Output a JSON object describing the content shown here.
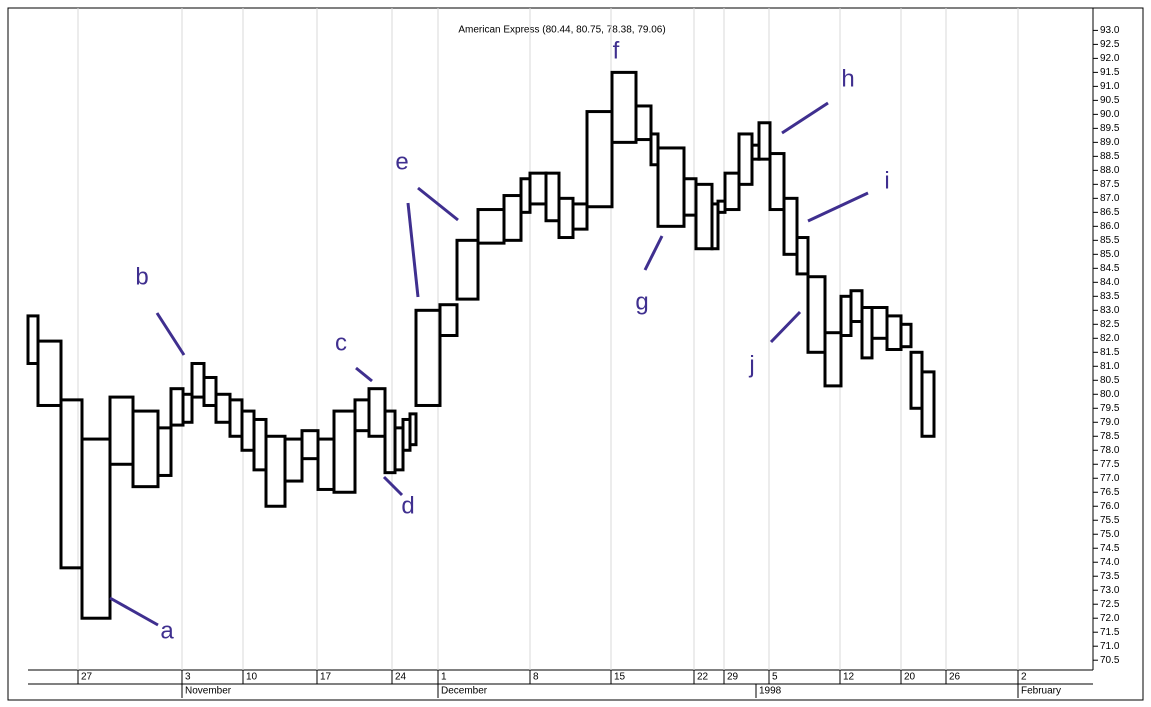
{
  "chart_data": {
    "type": "equivolume",
    "title": "American Express (80.44, 80.75, 78.38, 79.06)",
    "high": [
      82.8,
      81.9,
      79.8,
      78.4,
      79.9,
      79.4,
      78.8,
      80.2,
      80.0,
      81.1,
      80.6,
      80.0,
      79.8,
      79.4,
      79.1,
      78.5,
      78.4,
      78.7,
      78.4,
      79.4,
      79.8,
      80.2,
      79.4,
      78.8,
      79.1,
      79.3,
      83.0,
      83.2,
      85.5,
      86.6,
      87.1,
      87.7,
      87.9,
      87.9,
      87.0,
      86.8,
      90.1,
      91.5,
      90.3,
      89.3,
      88.8,
      87.7,
      87.5,
      86.8,
      86.9,
      87.9,
      89.3,
      88.9,
      89.7,
      88.6,
      87.0,
      85.6,
      84.2,
      82.2,
      83.5,
      83.7,
      83.1,
      83.1,
      82.8,
      82.5,
      81.5,
      80.8
    ],
    "low": [
      81.1,
      79.6,
      73.8,
      72.0,
      77.5,
      76.7,
      77.1,
      78.9,
      79.0,
      79.9,
      79.6,
      79.0,
      78.5,
      78.0,
      77.3,
      76.0,
      76.9,
      77.7,
      76.6,
      76.5,
      78.7,
      78.5,
      77.2,
      77.3,
      78.0,
      78.2,
      79.6,
      82.1,
      83.4,
      85.4,
      85.5,
      86.5,
      86.8,
      86.2,
      85.6,
      85.9,
      86.7,
      89.0,
      89.1,
      88.2,
      86.0,
      86.4,
      85.2,
      85.2,
      86.5,
      86.6,
      87.5,
      88.4,
      88.4,
      86.6,
      85.0,
      84.3,
      81.5,
      80.3,
      82.1,
      82.6,
      81.3,
      82.0,
      81.6,
      81.7,
      79.5,
      78.5
    ],
    "volume": [
      10,
      23,
      21,
      28,
      23,
      25,
      13,
      12,
      9,
      12,
      12,
      14,
      12,
      12,
      12,
      19,
      17,
      16,
      16,
      21,
      14,
      16,
      10,
      8,
      7,
      6,
      24,
      17,
      21,
      26,
      17,
      9,
      16,
      13,
      14,
      14,
      25,
      24,
      15,
      7,
      26,
      12,
      16,
      6,
      7,
      14,
      13,
      7,
      11,
      14,
      13,
      11,
      17,
      16,
      10,
      11,
      10,
      15,
      14,
      10,
      11,
      12
    ],
    "xlim": [
      0,
      1065
    ],
    "xticks": [
      {
        "value": 50,
        "label": "27"
      },
      {
        "value": 154,
        "label": "3"
      },
      {
        "value": 215,
        "label": "10"
      },
      {
        "value": 289,
        "label": "17"
      },
      {
        "value": 364,
        "label": "24"
      },
      {
        "value": 410,
        "label": "1"
      },
      {
        "value": 502,
        "label": "8"
      },
      {
        "value": 583,
        "label": "15"
      },
      {
        "value": 666,
        "label": "22"
      },
      {
        "value": 696,
        "label": "29"
      },
      {
        "value": 741,
        "label": "5"
      },
      {
        "value": 812,
        "label": "12"
      },
      {
        "value": 873,
        "label": "20"
      },
      {
        "value": 918,
        "label": "26"
      },
      {
        "value": 990,
        "label": "2"
      }
    ],
    "xticks_major": [
      {
        "value": 154,
        "label": "November"
      },
      {
        "value": 410,
        "label": "December"
      },
      {
        "value": 728,
        "label": "1998"
      },
      {
        "value": 990,
        "label": "February"
      }
    ],
    "ylim": [
      70.15,
      93.8
    ],
    "yticks": [
      70.5,
      {
        "value": 71,
        "label": "71.0"
      },
      71.5,
      {
        "value": 72,
        "label": "72.0"
      },
      72.5,
      {
        "value": 73,
        "label": "73.0"
      },
      73.5,
      {
        "value": 74,
        "label": "74.0"
      },
      74.5,
      {
        "value": 75,
        "label": "75.0"
      },
      75.5,
      {
        "value": 76,
        "label": "76.0"
      },
      76.5,
      {
        "value": 77,
        "label": "77.0"
      },
      77.5,
      {
        "value": 78,
        "label": "78.0"
      },
      78.5,
      {
        "value": 79,
        "label": "79.0"
      },
      79.5,
      {
        "value": 80,
        "label": "80.0"
      },
      80.5,
      {
        "value": 81,
        "label": "81.0"
      },
      81.5,
      {
        "value": 82,
        "label": "82.0"
      },
      82.5,
      {
        "value": 83,
        "label": "83.0"
      },
      83.5,
      {
        "value": 84,
        "label": "84.0"
      },
      84.5,
      {
        "value": 85,
        "label": "85.0"
      },
      85.5,
      {
        "value": 86,
        "label": "86.0"
      },
      86.5,
      {
        "value": 87,
        "label": "87.0"
      },
      87.5,
      {
        "value": 88,
        "label": "88.0"
      },
      88.5,
      {
        "value": 89,
        "label": "89.0"
      },
      89.5,
      {
        "value": 90,
        "label": "90.0"
      },
      90.5,
      {
        "value": 91,
        "label": "91.0"
      },
      91.5,
      {
        "value": 92,
        "label": "92.0"
      },
      92.5,
      {
        "value": 93,
        "label": "93.0"
      }
    ],
    "grid": true,
    "color": "#000000",
    "annotations": [
      "a",
      "b",
      "c",
      "d",
      "e",
      "f",
      "g",
      "h",
      "i",
      "j"
    ]
  }
}
